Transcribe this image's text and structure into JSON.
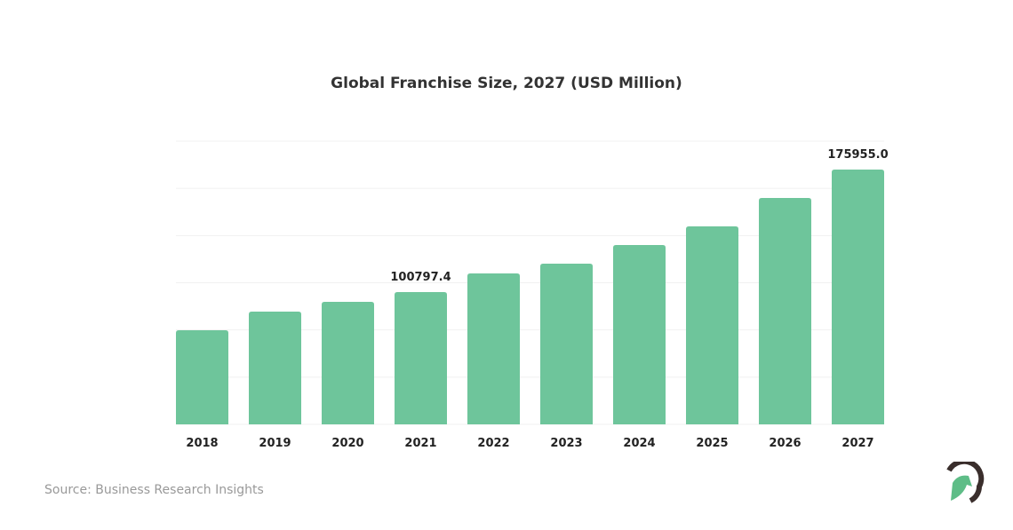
{
  "chart_data": {
    "type": "bar",
    "title": "Global Franchise Size, 2027 (USD Million)",
    "categories": [
      "2018",
      "2019",
      "2020",
      "2021",
      "2022",
      "2023",
      "2024",
      "2025",
      "2026",
      "2027"
    ],
    "values": [
      77380,
      88820,
      94800,
      100797.4,
      112230,
      118220,
      129660,
      141100,
      158520,
      175955.0
    ],
    "data_labels": {
      "2021": "100797.4",
      "2027": "175955.0"
    },
    "xlabel": "",
    "ylabel": "",
    "ylim": [
      19650,
      193400
    ],
    "grid": true,
    "bar_color": "#6ec59b"
  },
  "source": "Source: Business Research Insights",
  "logo": {
    "icon": "leaf-helmet-logo",
    "colors": [
      "#3a2e2c",
      "#5ebd87"
    ]
  }
}
